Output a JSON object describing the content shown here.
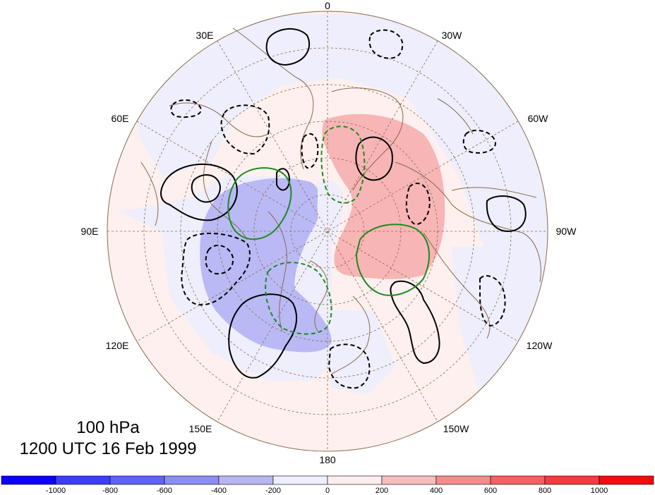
{
  "title": {
    "level": "100 hPa",
    "time": "1200 UTC 16 Feb 1999"
  },
  "lon_labels": {
    "l0": "0",
    "l30w": "30W",
    "l60w": "60W",
    "l90w": "90W",
    "l120w": "120W",
    "l150w": "150W",
    "l180": "180",
    "l150e": "150E",
    "l120e": "120E",
    "l90e": "90E",
    "l60e": "60E",
    "l30e": "30E"
  },
  "colorbar": {
    "colors": [
      "#0d00f5",
      "#3d3df5",
      "#6262f5",
      "#8c8cf5",
      "#b6b6f5",
      "#eeeeff",
      "#fdeeee",
      "#f8bcbc",
      "#f58c8c",
      "#f26262",
      "#f03d3d",
      "#f00d0d"
    ],
    "ticks": [
      "-1000",
      "-800",
      "-600",
      "-400",
      "-200",
      "0",
      "200",
      "400",
      "600",
      "800",
      "1000"
    ]
  },
  "colors": {
    "positive_fill": "#f7b5b5",
    "negative_fill": "#b9b9f5",
    "weak_positive": "#fdf0ee",
    "weak_negative": "#eeeefc",
    "contour_black": "#000000",
    "contour_green": "#1f8a1f",
    "coast": "#8a6a4a",
    "grid": "#8a6a4a"
  }
}
